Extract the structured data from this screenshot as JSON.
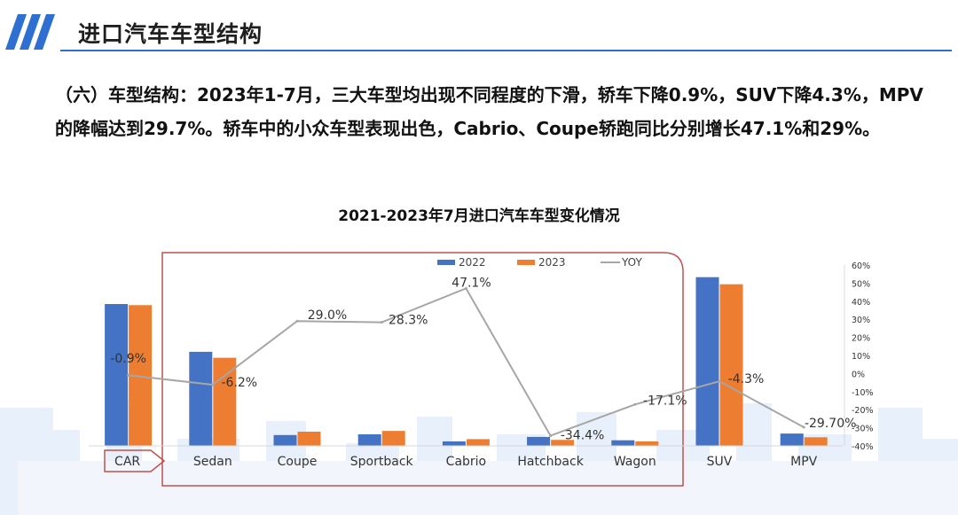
{
  "header": {
    "title": "进口汽车车型结构"
  },
  "paragraph": {
    "text": "（六）车型结构：2023年1-7月，三大车型均出现不同程度的下滑，轿车下降0.9%，SUV下降4.3%，MPV的降幅达到29.7%。轿车中的小众车型表现出色，Cabrio、Coupe轿跑同比分别增长47.1%和29%。"
  },
  "colors": {
    "series_2022": "#4472c4",
    "series_2023": "#ed7d31",
    "yoy_line": "#a6a6a6",
    "highlight_box": "#c0504d",
    "header_accent": "#2f6fcf"
  },
  "chart_data": {
    "type": "bar",
    "title": "2021-2023年7月进口汽车车型变化情况",
    "categories": [
      "CAR",
      "Sedan",
      "Coupe",
      "Sportback",
      "Cabrio",
      "Hatchback",
      "Wagon",
      "SUV",
      "MPV"
    ],
    "series": [
      {
        "name": "2022",
        "type": "bar",
        "values": [
          380,
          252,
          29,
          31,
          12,
          24,
          15,
          452,
          33
        ]
      },
      {
        "name": "2023",
        "type": "bar",
        "values": [
          377,
          236,
          38,
          40,
          18,
          16,
          12,
          433,
          23
        ]
      },
      {
        "name": "YOY",
        "type": "line",
        "axis": "right",
        "values": [
          -0.9,
          -6.2,
          29.0,
          28.3,
          47.1,
          -34.4,
          -17.1,
          -4.3,
          -29.7
        ]
      }
    ],
    "data_labels": [
      "-0.9%",
      "-6.2%",
      "29.0%",
      "28.3%",
      "47.1%",
      "-34.4%",
      "-17.1%",
      "-4.3%",
      "-29.70%"
    ],
    "y2_ticks": [
      "60%",
      "50%",
      "40%",
      "30%",
      "20%",
      "10%",
      "0%",
      "-10%",
      "-20%",
      "-30%",
      "-40%"
    ],
    "y2lim": [
      -40,
      60
    ],
    "legend_position": "top-center",
    "grid": false,
    "highlight": {
      "label": "CAR",
      "note": "Sedan–Wagon grouped as CAR subtypes"
    }
  }
}
